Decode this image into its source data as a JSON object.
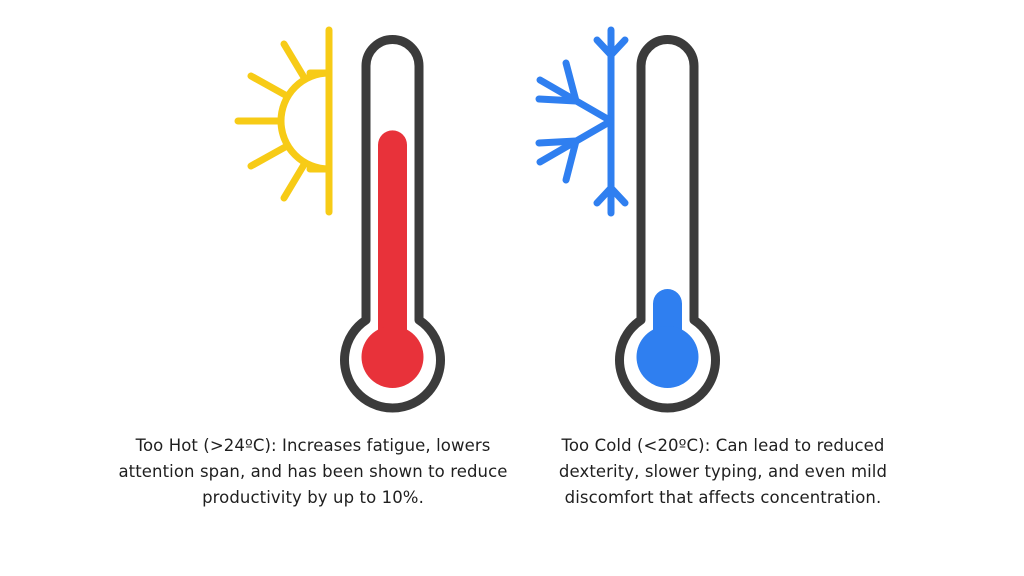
{
  "colors": {
    "outline": "#3b3b3b",
    "hot_fill": "#e8323a",
    "cold_fill": "#2f7ff0",
    "sun": "#f7cb16",
    "snowflake": "#2f7ff0",
    "text": "#1f1f1f",
    "background": "#ffffff"
  },
  "hot": {
    "icon": "sun-icon",
    "fill_level": 0.9,
    "caption": "Too Hot (>24ºC): Increases fatigue, lowers attention span, and has been shown to reduce productivity by up to 10%."
  },
  "cold": {
    "icon": "snowflake-icon",
    "fill_level": 0.25,
    "caption": "Too Cold (<20ºC): Can lead to reduced dexterity, slower typing, and even mild discomfort that affects concentration."
  }
}
